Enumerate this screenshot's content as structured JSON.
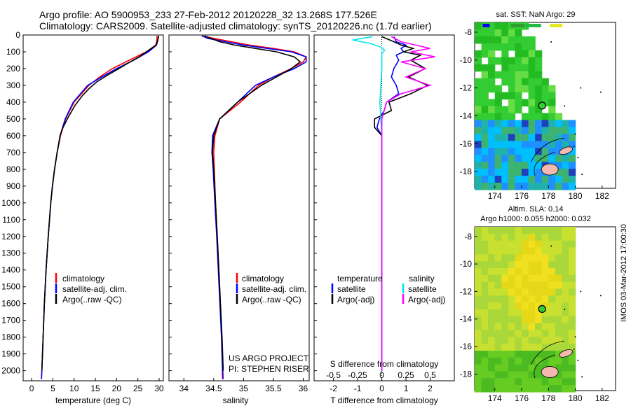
{
  "header": {
    "title_line1": "Argo profile: AO 5900953_233 27-Feb-2012 20120228_32 13.268S 177.526E",
    "title_line2": "Climatology: CARS2009. Satellite-adjusted climatology: synTS_20120226.nc (1.7d earlier)"
  },
  "colors": {
    "climatology": "#ff0000",
    "satellite": "#0000ff",
    "argo": "#000000",
    "salinity_satellite": "#00e5ee",
    "salinity_argo": "#ff00ff"
  },
  "chart_data": [
    {
      "id": "temperature",
      "type": "line",
      "xlabel": "temperature (deg C)",
      "ylabel": "",
      "xlim": [
        -2,
        31
      ],
      "ylim": [
        2060,
        0
      ],
      "x_ticks": [
        "0",
        "5",
        "10",
        "15",
        "20",
        "25",
        "30"
      ],
      "y_ticks": [
        "0",
        "100",
        "200",
        "300",
        "400",
        "500",
        "600",
        "700",
        "800",
        "900",
        "1000",
        "1100",
        "1200",
        "1300",
        "1400",
        "1500",
        "1600",
        "1700",
        "1800",
        "1900",
        "2000"
      ],
      "legend": [
        "climatology",
        "satellite-adj. clim.",
        "Argo(..raw -QC)"
      ],
      "series": [
        {
          "name": "climatology",
          "depth": [
            5,
            20,
            40,
            60,
            100,
            150,
            200,
            250,
            300,
            400,
            500,
            600,
            700,
            800,
            900,
            1000,
            1200,
            1400,
            1600,
            1800,
            2000,
            2050
          ],
          "values": [
            29.5,
            29.5,
            29.4,
            29.2,
            27,
            23,
            19,
            16,
            13.5,
            10,
            8,
            6.8,
            6,
            5.4,
            4.9,
            4.5,
            3.9,
            3.4,
            3,
            2.7,
            2.4,
            2.3
          ]
        },
        {
          "name": "satellite-adj. clim.",
          "depth": [
            5,
            20,
            40,
            60,
            100,
            150,
            200,
            250,
            300,
            400,
            500,
            600,
            700,
            800,
            900,
            1000,
            1200,
            1400,
            1600,
            1800,
            2000,
            2050
          ],
          "values": [
            29.8,
            29.8,
            29.6,
            29.4,
            27.5,
            24,
            20,
            16.5,
            13.2,
            9.8,
            7.9,
            6.7,
            6,
            5.4,
            4.9,
            4.5,
            3.9,
            3.4,
            3,
            2.7,
            2.4,
            2.3
          ]
        },
        {
          "name": "Argo(..raw -QC)",
          "depth": [
            5,
            20,
            40,
            60,
            80,
            100,
            130,
            160,
            200,
            240,
            280,
            320,
            360,
            420,
            500,
            560,
            600,
            700,
            800,
            900,
            1000,
            1200,
            1400,
            1600,
            1800,
            2000
          ],
          "values": [
            29.9,
            29.8,
            29.6,
            29.3,
            28.2,
            27,
            25.3,
            23.2,
            20.5,
            17.8,
            15.3,
            13.5,
            12,
            10.2,
            8.4,
            7.2,
            6.7,
            6,
            5.4,
            4.9,
            4.5,
            3.9,
            3.4,
            3,
            2.7,
            2.4
          ]
        }
      ]
    },
    {
      "id": "salinity",
      "type": "line",
      "xlabel": "salinity",
      "xlim": [
        33.75,
        36.1
      ],
      "ylim": [
        2060,
        0
      ],
      "x_ticks": [
        "34",
        "34.5",
        "35",
        "35.5",
        "36"
      ],
      "legend": [
        "climatology",
        "satellite-adj. clim.",
        "Argo(..raw -QC)"
      ],
      "annotation": [
        "US ARGO PROJECT",
        "PI: STEPHEN RISER"
      ],
      "series": [
        {
          "name": "climatology",
          "depth": [
            5,
            20,
            40,
            60,
            80,
            100,
            130,
            160,
            200,
            250,
            300,
            400,
            500,
            600,
            700,
            800,
            1000,
            1200,
            1500,
            1800,
            2050
          ],
          "values": [
            34.3,
            34.5,
            34.8,
            35.1,
            35.5,
            35.85,
            36.05,
            36.0,
            35.8,
            35.5,
            35.25,
            34.95,
            34.6,
            34.52,
            34.5,
            34.51,
            34.53,
            34.56,
            34.6,
            34.63,
            34.66
          ]
        },
        {
          "name": "satellite-adj. clim.",
          "depth": [
            5,
            20,
            40,
            60,
            80,
            100,
            130,
            160,
            200,
            250,
            300,
            400,
            500,
            600,
            700,
            800,
            1000,
            1200,
            1500,
            1800,
            2050
          ],
          "values": [
            34.3,
            34.4,
            34.7,
            35.0,
            35.4,
            35.8,
            36.05,
            36.05,
            35.85,
            35.5,
            35.2,
            34.9,
            34.6,
            34.48,
            34.47,
            34.49,
            34.52,
            34.55,
            34.59,
            34.63,
            34.65
          ]
        },
        {
          "name": "Argo(..raw -QC)",
          "depth": [
            5,
            20,
            40,
            60,
            80,
            100,
            130,
            160,
            200,
            250,
            300,
            400,
            450,
            500,
            550,
            600,
            700,
            800,
            1000,
            1200,
            1500,
            1800,
            2000
          ],
          "values": [
            34.35,
            34.45,
            34.6,
            34.85,
            35.2,
            35.55,
            35.85,
            35.95,
            35.8,
            35.55,
            35.3,
            34.9,
            34.75,
            34.6,
            34.55,
            34.5,
            34.48,
            34.5,
            34.53,
            34.56,
            34.6,
            34.64,
            34.66
          ]
        }
      ]
    },
    {
      "id": "difference",
      "type": "line",
      "xlabel": "T difference from climatology",
      "xlabel_top": "S difference from climatology",
      "x_ticks": [
        "-2",
        "-1",
        "0",
        "1",
        "2"
      ],
      "x_ticks_top": [
        "-0.5",
        "-0.25",
        "0",
        "0.25",
        "0.5"
      ],
      "xlim": [
        -2.8,
        3
      ],
      "ylim": [
        2060,
        0
      ],
      "legend_headers": [
        "temperature",
        "salinity"
      ],
      "legend": [
        "satellite",
        "Argo(-adj)",
        "satellite",
        "Argo(-adj)"
      ],
      "series": [
        {
          "name": "temperature satellite",
          "depth": [
            10,
            40,
            60,
            80,
            100,
            120,
            150,
            200,
            250,
            300,
            350,
            400,
            450,
            500,
            550,
            600,
            700,
            800,
            1000,
            1200,
            1500,
            2000
          ],
          "values": [
            0.5,
            0.6,
            1.0,
            0.8,
            0.9,
            0.6,
            0.7,
            0.5,
            0.4,
            0.6,
            0.7,
            0.2,
            0.1,
            -0.1,
            -0.2,
            0,
            0,
            0,
            0,
            0,
            0,
            0
          ]
        },
        {
          "name": "temperature Argo(-adj)",
          "depth": [
            10,
            40,
            60,
            80,
            100,
            120,
            150,
            200,
            250,
            300,
            350,
            400,
            450,
            500,
            550,
            600,
            700,
            800,
            1000,
            1200,
            1500,
            2000
          ],
          "values": [
            0,
            0.5,
            0.8,
            1.3,
            0.9,
            1.6,
            1.2,
            1.8,
            1.1,
            1.9,
            1.2,
            0.3,
            0.4,
            -0.3,
            -0.3,
            0,
            0,
            0,
            0,
            0,
            0,
            0
          ]
        },
        {
          "name": "salinity satellite",
          "depth": [
            10,
            30,
            50,
            70,
            90,
            110,
            150,
            200,
            300,
            400,
            500,
            600,
            700,
            800,
            1000,
            1200,
            1500,
            2000
          ],
          "values": [
            -0.1,
            -0.3,
            -0.12,
            -0.02,
            0.03,
            0.0,
            0.0,
            0.0,
            -0.01,
            -0.02,
            -0.01,
            0.0,
            0.0,
            0.0,
            0.0,
            0.0,
            0.0,
            0.0
          ]
        },
        {
          "name": "salinity Argo(-adj)",
          "depth": [
            10,
            40,
            60,
            80,
            100,
            130,
            160,
            200,
            250,
            300,
            350,
            400,
            500,
            600,
            700,
            800,
            1000,
            1200,
            1500,
            2000
          ],
          "values": [
            0.1,
            0.2,
            0.35,
            0.5,
            0.3,
            0.55,
            0.2,
            0.45,
            0.25,
            0.5,
            0.2,
            0.05,
            0.0,
            0.0,
            0.0,
            0.0,
            0.0,
            0.0,
            0.0,
            0.0
          ]
        }
      ]
    },
    {
      "id": "sst-map",
      "type": "heatmap",
      "title": "sat. SST: NaN Argo: 29",
      "x_ticks": [
        "174",
        "176",
        "178",
        "180",
        "182"
      ],
      "y_ticks": [
        "-8",
        "-10",
        "-12",
        "-14",
        "-16",
        "-18"
      ],
      "xlim": [
        172.5,
        183
      ],
      "ylim": [
        -19.2,
        -7.3
      ],
      "argo_position": {
        "lon": 177.526,
        "lat": -13.268
      }
    },
    {
      "id": "sla-map",
      "type": "heatmap",
      "title_line1": "Altim. SLA: 0.14",
      "title_line2": "Argo h1000: 0.055 h2000: 0.032",
      "x_ticks": [
        "174",
        "176",
        "178",
        "180",
        "182"
      ],
      "y_ticks": [
        "-8",
        "-10",
        "-12",
        "-14",
        "-16",
        "-18"
      ],
      "xlim": [
        172.5,
        183
      ],
      "ylim": [
        -19.2,
        -7.3
      ],
      "argo_position": {
        "lon": 177.526,
        "lat": -13.268
      }
    }
  ],
  "footer": {
    "vertical_label": "IMOS 03-Mar-2012 17:00:30"
  }
}
